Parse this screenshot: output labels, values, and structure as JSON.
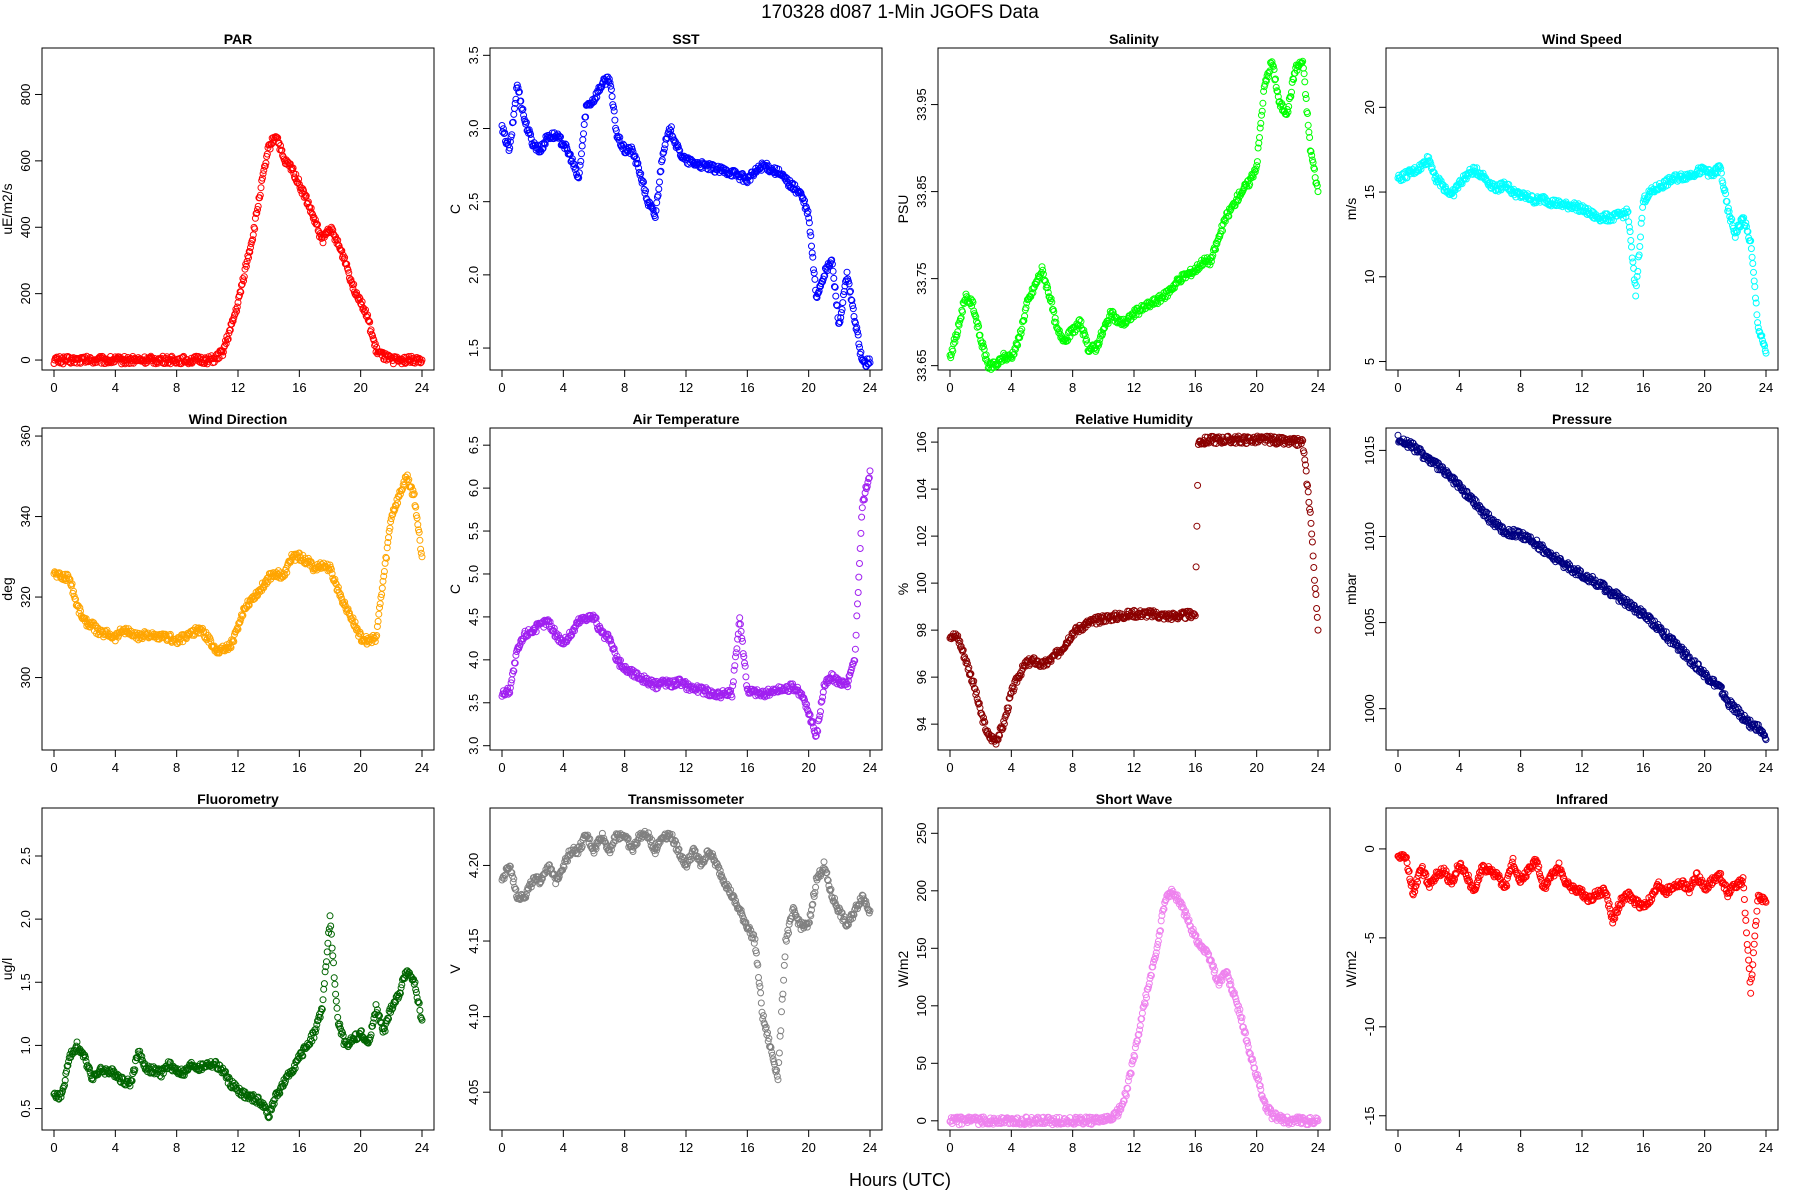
{
  "main_title": "170328   d087   1-Min  JGOFS Data",
  "x_axis_label": "Hours (UTC)",
  "chart_data": [
    {
      "type": "scatter",
      "title": "PAR",
      "ylabel": "uE/m2/s",
      "color": "#ff0000",
      "xlim": [
        0,
        24
      ],
      "ylim": [
        -30,
        940
      ],
      "xticks": [
        0,
        4,
        8,
        12,
        16,
        20,
        24
      ],
      "yticks": [
        0,
        200,
        400,
        600,
        800
      ],
      "yticklabels": [
        "0",
        "200",
        "400",
        "600",
        "800"
      ],
      "x": [
        0,
        2,
        4,
        6,
        8,
        10,
        10.5,
        11,
        11.5,
        12,
        12.5,
        13,
        13.5,
        14,
        14.5,
        15,
        15.5,
        16,
        16.5,
        17,
        17.5,
        18,
        18.5,
        19,
        19.5,
        20,
        20.5,
        21,
        21.5,
        22,
        23,
        24
      ],
      "y": [
        0,
        0,
        0,
        0,
        0,
        0,
        2,
        25,
        90,
        170,
        280,
        380,
        520,
        640,
        680,
        600,
        580,
        530,
        480,
        420,
        360,
        400,
        350,
        300,
        220,
        180,
        120,
        30,
        10,
        0,
        0,
        0
      ]
    },
    {
      "type": "scatter",
      "title": "SST",
      "ylabel": "C",
      "color": "#0000ff",
      "xlim": [
        0,
        24
      ],
      "ylim": [
        1.35,
        3.55
      ],
      "xticks": [
        0,
        4,
        8,
        12,
        16,
        20,
        24
      ],
      "yticks": [
        1.5,
        2.0,
        2.5,
        3.0,
        3.5
      ],
      "yticklabels": [
        "1.5",
        "2.0",
        "2.5",
        "3.0",
        "3.5"
      ],
      "x": [
        0,
        0.5,
        1,
        1.5,
        2,
        2.5,
        3,
        3.5,
        4,
        4.5,
        5,
        5.5,
        6,
        6.5,
        7,
        7.5,
        8,
        8.5,
        9,
        9.5,
        10,
        10.5,
        11,
        11.5,
        12,
        13,
        14,
        15,
        16,
        16.5,
        17,
        18,
        19,
        19.5,
        20,
        20.5,
        21,
        21.5,
        22,
        22.5,
        23,
        23.5,
        24
      ],
      "y": [
        3.0,
        2.85,
        3.3,
        3.05,
        2.9,
        2.85,
        2.95,
        2.95,
        2.9,
        2.8,
        2.65,
        3.15,
        3.2,
        3.3,
        3.35,
        2.95,
        2.85,
        2.85,
        2.7,
        2.5,
        2.4,
        2.85,
        3.0,
        2.85,
        2.78,
        2.75,
        2.72,
        2.7,
        2.65,
        2.7,
        2.75,
        2.7,
        2.6,
        2.55,
        2.4,
        1.85,
        2.0,
        2.1,
        1.65,
        2.0,
        1.7,
        1.4,
        1.4
      ]
    },
    {
      "type": "scatter",
      "title": "Salinity",
      "ylabel": "PSU",
      "color": "#00ff00",
      "xlim": [
        0,
        24
      ],
      "ylim": [
        33.645,
        34.015
      ],
      "xticks": [
        0,
        4,
        8,
        12,
        16,
        20,
        24
      ],
      "yticks": [
        33.65,
        33.75,
        33.85,
        33.95
      ],
      "yticklabels": [
        "33.65",
        "33.75",
        "33.85",
        "33.95"
      ],
      "x": [
        0,
        0.5,
        1,
        1.5,
        2,
        2.5,
        3,
        3.5,
        4,
        4.5,
        5,
        5.5,
        6,
        6.5,
        7,
        7.5,
        8,
        8.5,
        9,
        9.5,
        10,
        10.5,
        11,
        11.5,
        12,
        13,
        14,
        15,
        16,
        16.5,
        17,
        18,
        19,
        19.5,
        20,
        20.5,
        21,
        21.5,
        22,
        22.5,
        23,
        23.5,
        24
      ],
      "y": [
        33.66,
        33.69,
        33.73,
        33.72,
        33.68,
        33.65,
        33.65,
        33.66,
        33.66,
        33.68,
        33.72,
        33.74,
        33.76,
        33.73,
        33.69,
        33.68,
        33.69,
        33.7,
        33.67,
        33.67,
        33.69,
        33.71,
        33.7,
        33.7,
        33.71,
        33.72,
        33.73,
        33.75,
        33.76,
        33.77,
        33.77,
        33.82,
        33.85,
        33.86,
        33.88,
        33.97,
        34.0,
        33.95,
        33.94,
        33.99,
        34.0,
        33.9,
        33.85
      ]
    },
    {
      "type": "scatter",
      "title": "Wind Speed",
      "ylabel": "m/s",
      "color": "#00ffff",
      "xlim": [
        0,
        24
      ],
      "ylim": [
        4.5,
        23.5
      ],
      "xticks": [
        0,
        4,
        8,
        12,
        16,
        20,
        24
      ],
      "yticks": [
        5,
        10,
        15,
        20
      ],
      "yticklabels": [
        "5",
        "10",
        "15",
        "20"
      ],
      "x": [
        0,
        0.5,
        1,
        1.5,
        2,
        2.5,
        3,
        3.5,
        4,
        4.5,
        5,
        5.5,
        6,
        6.5,
        7,
        7.5,
        8,
        8.5,
        9,
        9.5,
        10,
        10.5,
        11,
        11.5,
        12,
        13,
        14,
        15,
        15.5,
        16,
        16.5,
        17,
        18,
        19,
        19.5,
        20,
        20.5,
        21,
        21.5,
        22,
        22.5,
        23,
        23.5,
        24
      ],
      "y": [
        15.8,
        16,
        16.2,
        16.5,
        17,
        15.8,
        15.3,
        14.8,
        15.5,
        16,
        16.3,
        16,
        15.5,
        15.2,
        15.5,
        15,
        14.8,
        14.7,
        14.5,
        14.6,
        14.4,
        14.3,
        14.2,
        14.2,
        14,
        13.5,
        13.5,
        13.8,
        9,
        14.5,
        15,
        15.3,
        15.8,
        16,
        16.2,
        16.3,
        16,
        16.5,
        14,
        12.5,
        13.5,
        12,
        7,
        5.5
      ]
    },
    {
      "type": "scatter",
      "title": "Wind Direction",
      "ylabel": "deg",
      "color": "#ffa500",
      "xlim": [
        0,
        24
      ],
      "ylim": [
        282,
        362
      ],
      "xticks": [
        0,
        4,
        8,
        12,
        16,
        20,
        24
      ],
      "yticks": [
        300,
        320,
        340,
        360
      ],
      "yticklabels": [
        "300",
        "320",
        "340",
        "360"
      ],
      "x": [
        0,
        0.5,
        1,
        1.5,
        2,
        2.5,
        3,
        3.5,
        4,
        4.5,
        5,
        5.5,
        6,
        6.5,
        7,
        7.5,
        8,
        8.5,
        9,
        9.5,
        10,
        10.5,
        11,
        11.5,
        12,
        12.5,
        13,
        13.5,
        14,
        14.5,
        15,
        15.5,
        16,
        16.5,
        17,
        17.5,
        18,
        18.5,
        19,
        19.5,
        20,
        20.5,
        21,
        21.5,
        22,
        22.5,
        23,
        23.5,
        24
      ],
      "y": [
        326,
        325,
        325,
        318,
        314,
        313,
        311,
        311,
        310,
        312,
        311,
        310,
        311,
        310,
        310,
        310,
        309,
        310,
        311,
        312,
        310,
        307,
        307,
        308,
        312,
        318,
        320,
        322,
        325,
        326,
        325,
        330,
        330,
        329,
        327,
        328,
        327,
        322,
        318,
        314,
        310,
        309,
        310,
        325,
        340,
        345,
        350,
        345,
        330
      ]
    },
    {
      "type": "scatter",
      "title": "Air Temperature",
      "ylabel": "C",
      "color": "#a020f0",
      "xlim": [
        0,
        24
      ],
      "ylim": [
        2.95,
        6.7
      ],
      "xticks": [
        0,
        4,
        8,
        12,
        16,
        20,
        24
      ],
      "yticks": [
        3.0,
        3.5,
        4.0,
        4.5,
        5.0,
        5.5,
        6.0,
        6.5
      ],
      "yticklabels": [
        "3.0",
        "3.5",
        "4.0",
        "4.5",
        "5.0",
        "5.5",
        "6.0",
        "6.5"
      ],
      "x": [
        0,
        0.5,
        1,
        1.5,
        2,
        2.5,
        3,
        3.5,
        4,
        4.5,
        5,
        5.5,
        6,
        6.5,
        7,
        7.5,
        8,
        8.5,
        9,
        9.5,
        10,
        10.5,
        11,
        11.5,
        12,
        13,
        14,
        15,
        15.5,
        16,
        17,
        18,
        19,
        19.5,
        20,
        20.5,
        21,
        21.5,
        22,
        22.5,
        23,
        23.5,
        24
      ],
      "y": [
        3.6,
        3.65,
        4.1,
        4.3,
        4.35,
        4.4,
        4.45,
        4.3,
        4.2,
        4.3,
        4.45,
        4.5,
        4.5,
        4.3,
        4.25,
        4.0,
        3.9,
        3.85,
        3.8,
        3.75,
        3.7,
        3.75,
        3.72,
        3.75,
        3.7,
        3.65,
        3.6,
        3.6,
        4.5,
        3.65,
        3.6,
        3.65,
        3.68,
        3.6,
        3.4,
        3.1,
        3.7,
        3.8,
        3.75,
        3.7,
        4.0,
        5.8,
        6.2
      ]
    },
    {
      "type": "scatter",
      "title": "Relative Humidity",
      "ylabel": "%",
      "color": "#8b0000",
      "xlim": [
        0,
        24
      ],
      "ylim": [
        92.9,
        106.6
      ],
      "xticks": [
        0,
        4,
        8,
        12,
        16,
        20,
        24
      ],
      "yticks": [
        94,
        96,
        98,
        100,
        102,
        104,
        106
      ],
      "yticklabels": [
        "94",
        "96",
        "98",
        "100",
        "102",
        "104",
        "106"
      ],
      "x": [
        0,
        0.5,
        1,
        1.5,
        2,
        2.5,
        3,
        3.5,
        4,
        4.5,
        5,
        5.5,
        6,
        6.5,
        7,
        7.5,
        8,
        9,
        10,
        11,
        12,
        13,
        14,
        15,
        16,
        16.2,
        17,
        18,
        19,
        20,
        21,
        22,
        23,
        23.5,
        24
      ],
      "y": [
        97.8,
        97.7,
        96.8,
        95.8,
        94.5,
        93.5,
        93.3,
        94,
        95.3,
        96.1,
        96.6,
        96.7,
        96.5,
        96.7,
        97,
        97.4,
        97.9,
        98.3,
        98.5,
        98.6,
        98.7,
        98.7,
        98.6,
        98.6,
        98.7,
        106,
        106.1,
        106.1,
        106.1,
        106.1,
        106.1,
        106,
        106,
        103,
        98
      ]
    },
    {
      "type": "scatter",
      "title": "Pressure",
      "ylabel": "mbar",
      "color": "#000080",
      "xlim": [
        0,
        24
      ],
      "ylim": [
        997.6,
        1016.3
      ],
      "xticks": [
        0,
        4,
        8,
        12,
        16,
        20,
        24
      ],
      "yticks": [
        1000,
        1005,
        1010,
        1015
      ],
      "yticklabels": [
        "1000",
        "1005",
        "1010",
        "1015"
      ],
      "x": [
        0,
        1,
        2,
        3,
        4,
        5,
        6,
        7,
        8,
        9,
        10,
        11,
        12,
        13,
        14,
        15,
        16,
        17,
        18,
        19,
        20,
        21,
        21.5,
        22,
        22.5,
        23,
        23.5,
        24
      ],
      "y": [
        1015.7,
        1015.2,
        1014.5,
        1013.8,
        1012.9,
        1012.0,
        1011.0,
        1010.3,
        1010.1,
        1009.6,
        1008.9,
        1008.3,
        1007.8,
        1007.3,
        1006.7,
        1006.1,
        1005.5,
        1004.7,
        1003.8,
        1002.9,
        1002.0,
        1001.2,
        1000.4,
        1000.0,
        999.5,
        999.1,
        998.9,
        998.2
      ]
    },
    {
      "type": "scatter",
      "title": "Fluorometry",
      "ylabel": "ug/l",
      "color": "#006400",
      "xlim": [
        0,
        24
      ],
      "ylim": [
        0.33,
        2.88
      ],
      "xticks": [
        0,
        4,
        8,
        12,
        16,
        20,
        24
      ],
      "yticks": [
        0.5,
        1.0,
        1.5,
        2.0,
        2.5
      ],
      "yticklabels": [
        "0.5",
        "1.0",
        "1.5",
        "2.0",
        "2.5"
      ],
      "x": [
        0,
        0.5,
        1,
        1.5,
        2,
        2.5,
        3,
        3.5,
        4,
        4.5,
        5,
        5.5,
        6,
        6.5,
        7,
        7.5,
        8,
        8.5,
        9,
        9.5,
        10,
        10.5,
        11,
        11.5,
        12,
        12.5,
        13,
        13.5,
        14,
        14.5,
        15,
        15.5,
        16,
        16.5,
        17,
        17.5,
        18,
        18.5,
        19,
        19.5,
        20,
        20.5,
        21,
        21.5,
        22,
        22.5,
        23,
        23.5,
        24
      ],
      "y": [
        0.6,
        0.6,
        0.9,
        1.0,
        0.9,
        0.75,
        0.8,
        0.8,
        0.78,
        0.72,
        0.7,
        0.95,
        0.82,
        0.8,
        0.78,
        0.85,
        0.8,
        0.78,
        0.85,
        0.82,
        0.85,
        0.85,
        0.8,
        0.7,
        0.65,
        0.6,
        0.58,
        0.55,
        0.45,
        0.6,
        0.7,
        0.8,
        0.9,
        1.0,
        1.1,
        1.3,
        2.0,
        1.2,
        1.0,
        1.05,
        1.1,
        1.0,
        1.3,
        1.1,
        1.3,
        1.4,
        1.6,
        1.5,
        1.2
      ]
    },
    {
      "type": "scatter",
      "title": "Transmissometer",
      "ylabel": "V",
      "color": "#808080",
      "xlim": [
        0,
        24
      ],
      "ylim": [
        4.025,
        4.238
      ],
      "xticks": [
        0,
        4,
        8,
        12,
        16,
        20,
        24
      ],
      "yticks": [
        4.05,
        4.1,
        4.15,
        4.2
      ],
      "yticklabels": [
        "4.05",
        "4.10",
        "4.15",
        "4.20"
      ],
      "x": [
        0,
        0.5,
        1,
        1.5,
        2,
        2.5,
        3,
        3.5,
        4,
        4.5,
        5,
        5.5,
        6,
        6.5,
        7,
        7.5,
        8,
        8.5,
        9,
        9.5,
        10,
        10.5,
        11,
        11.5,
        12,
        12.5,
        13,
        13.5,
        14,
        14.5,
        15,
        15.5,
        16,
        16.5,
        17,
        17.5,
        18,
        18.5,
        19,
        19.5,
        20,
        20.5,
        21,
        21.5,
        22,
        22.5,
        23,
        23.5,
        24
      ],
      "y": [
        4.19,
        4.2,
        4.18,
        4.18,
        4.19,
        4.19,
        4.2,
        4.19,
        4.2,
        4.21,
        4.21,
        4.22,
        4.21,
        4.22,
        4.21,
        4.22,
        4.22,
        4.21,
        4.22,
        4.22,
        4.21,
        4.22,
        4.22,
        4.21,
        4.2,
        4.21,
        4.2,
        4.21,
        4.2,
        4.19,
        4.18,
        4.17,
        4.16,
        4.15,
        4.1,
        4.08,
        4.06,
        4.15,
        4.17,
        4.16,
        4.16,
        4.19,
        4.2,
        4.18,
        4.17,
        4.16,
        4.17,
        4.18,
        4.17
      ]
    },
    {
      "type": "scatter",
      "title": "Short Wave",
      "ylabel": "W/m2",
      "color": "#ee82ee",
      "xlim": [
        0,
        24
      ],
      "ylim": [
        -8,
        272
      ],
      "xticks": [
        0,
        4,
        8,
        12,
        16,
        20,
        24
      ],
      "yticks": [
        0,
        50,
        100,
        150,
        200,
        250
      ],
      "yticklabels": [
        "0",
        "50",
        "100",
        "150",
        "200",
        "250"
      ],
      "x": [
        0,
        2,
        4,
        6,
        8,
        10,
        10.5,
        11,
        11.5,
        12,
        12.5,
        13,
        13.5,
        14,
        14.5,
        15,
        15.5,
        16,
        16.5,
        17,
        17.5,
        18,
        18.5,
        19,
        19.5,
        20,
        20.5,
        21,
        21.5,
        22,
        23,
        24
      ],
      "y": [
        0,
        0,
        0,
        0,
        0,
        0,
        2,
        8,
        25,
        55,
        90,
        120,
        150,
        190,
        200,
        190,
        175,
        160,
        150,
        140,
        120,
        130,
        110,
        90,
        60,
        40,
        15,
        5,
        2,
        0,
        0,
        0
      ]
    },
    {
      "type": "scatter",
      "title": "Infrared",
      "ylabel": "W/m2",
      "color": "#ff0000",
      "xlim": [
        0,
        24
      ],
      "ylim": [
        -15.8,
        2.3
      ],
      "xticks": [
        0,
        4,
        8,
        12,
        16,
        20,
        24
      ],
      "yticks": [
        -15,
        -10,
        -5,
        0
      ],
      "yticklabels": [
        "-15",
        "-10",
        "-5",
        "0"
      ],
      "x": [
        0,
        0.5,
        1,
        1.5,
        2,
        2.5,
        3,
        3.5,
        4,
        4.5,
        5,
        5.5,
        6,
        6.5,
        7,
        7.5,
        8,
        8.5,
        9,
        9.5,
        10,
        10.5,
        11,
        11.5,
        12,
        12.5,
        13,
        13.5,
        14,
        14.5,
        15,
        15.5,
        16,
        16.5,
        17,
        17.5,
        18,
        18.5,
        19,
        19.5,
        20,
        20.5,
        21,
        21.5,
        22,
        22.5,
        23,
        23.5,
        24
      ],
      "y": [
        -0.3,
        -0.5,
        -2.5,
        -1,
        -2,
        -1.5,
        -1.2,
        -2,
        -0.8,
        -1.5,
        -2.5,
        -1,
        -1.2,
        -1.5,
        -2.2,
        -0.7,
        -1.8,
        -1.2,
        -0.6,
        -2.2,
        -1.5,
        -1,
        -2,
        -2.2,
        -2.5,
        -2.8,
        -2.5,
        -2.3,
        -4,
        -3,
        -2.6,
        -3,
        -3.2,
        -2.8,
        -2,
        -2.4,
        -2.1,
        -1.9,
        -2.3,
        -1.5,
        -2.2,
        -1.8,
        -1.5,
        -2.5,
        -2.0,
        -1.8,
        -8,
        -2.5,
        -3
      ]
    }
  ]
}
